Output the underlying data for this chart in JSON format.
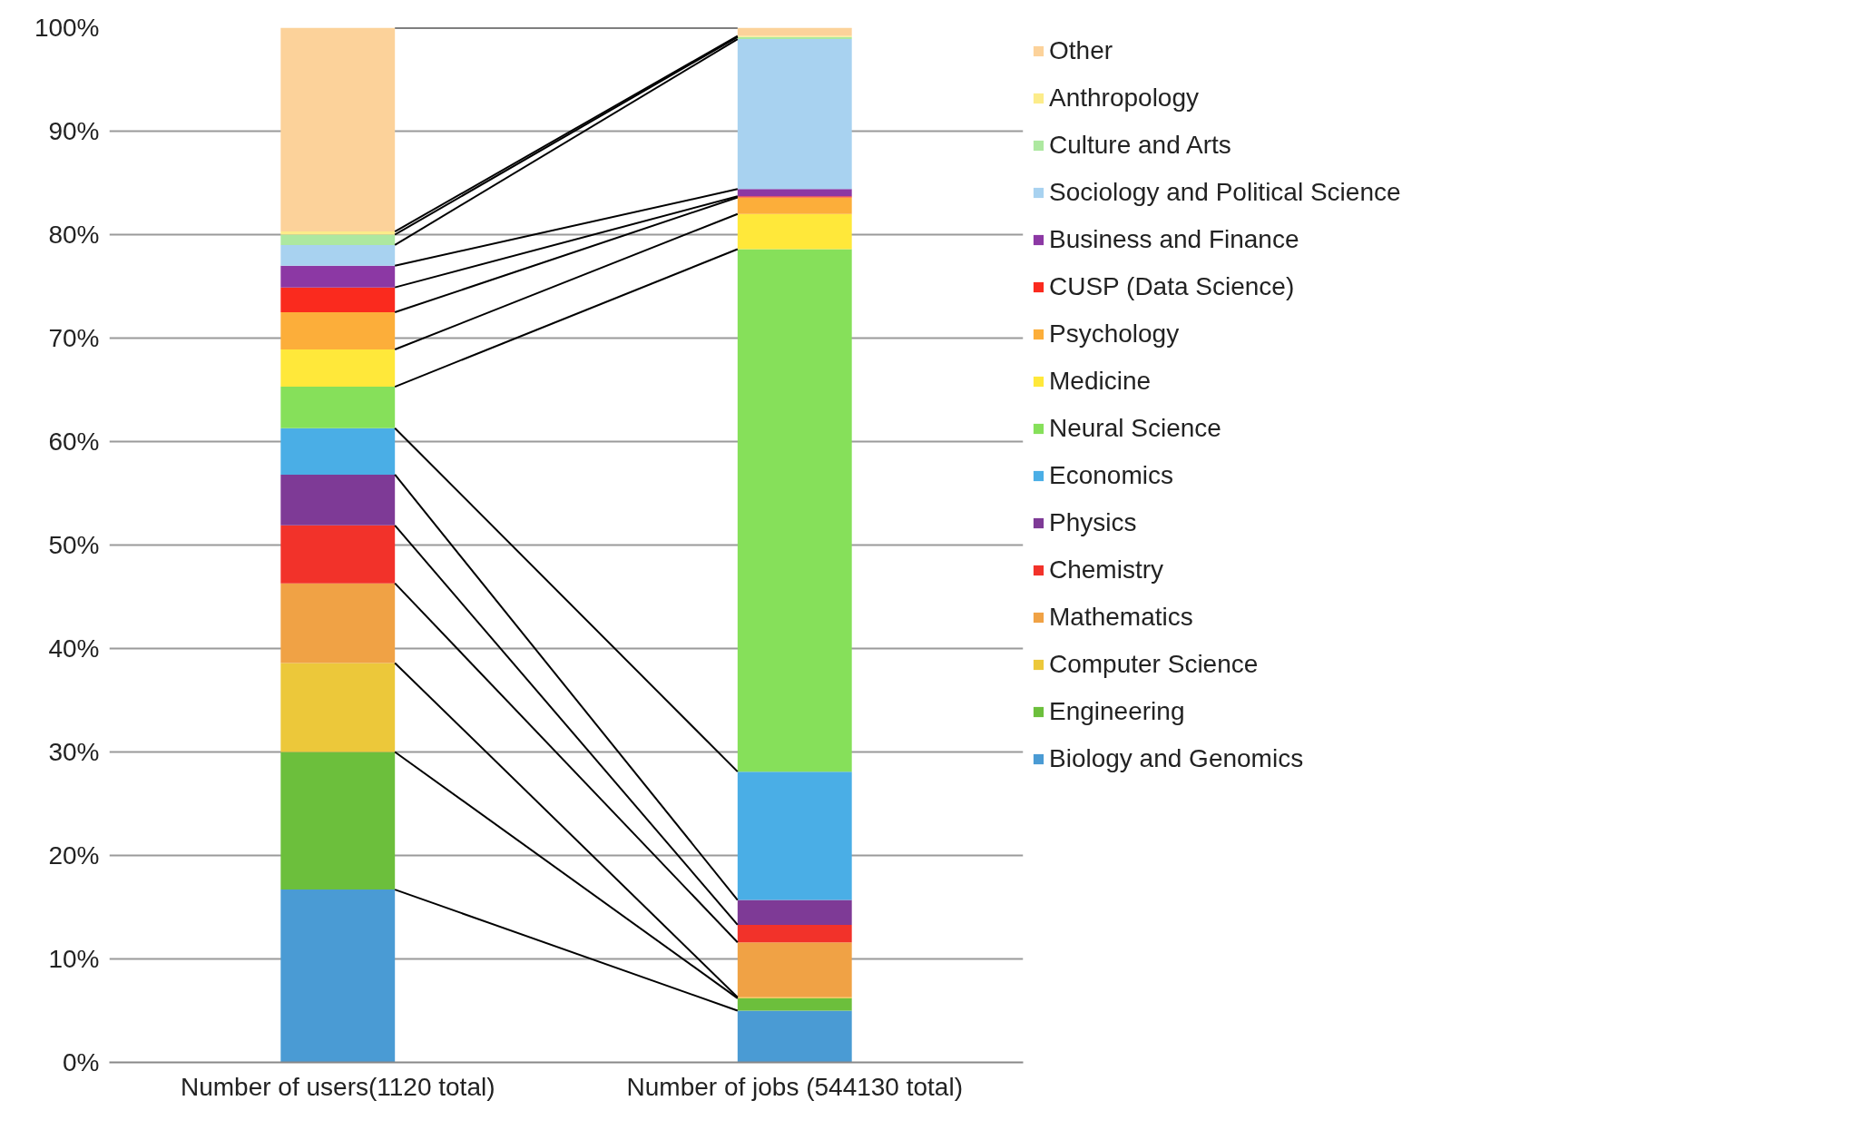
{
  "chart_data": {
    "type": "bar",
    "stacked": true,
    "categories": [
      "Number of users(1120 total)",
      "Number of jobs (544130 total)"
    ],
    "ylim": [
      0,
      100
    ],
    "yticks": [
      {
        "value": 0,
        "label": "0%"
      },
      {
        "value": 10,
        "label": "10%"
      },
      {
        "value": 20,
        "label": "20%"
      },
      {
        "value": 30,
        "label": "30%"
      },
      {
        "value": 40,
        "label": "40%"
      },
      {
        "value": 50,
        "label": "50%"
      },
      {
        "value": 60,
        "label": "60%"
      },
      {
        "value": 70,
        "label": "70%"
      },
      {
        "value": 80,
        "label": "80%"
      },
      {
        "value": 90,
        "label": "90%"
      },
      {
        "value": 100,
        "label": "100%"
      }
    ],
    "grid": "y",
    "legend": "right",
    "series": [
      {
        "name": "Biology and Genomics",
        "color": "#4a9bd4",
        "values": [
          16.7,
          5.0
        ]
      },
      {
        "name": "Engineering",
        "color": "#6cbf3c",
        "values": [
          13.3,
          1.2
        ]
      },
      {
        "name": "Computer Science",
        "color": "#ecc83a",
        "values": [
          8.6,
          0.1
        ]
      },
      {
        "name": "Mathematics",
        "color": "#f0a245",
        "values": [
          7.7,
          5.3
        ]
      },
      {
        "name": "Chemistry",
        "color": "#f2322a",
        "values": [
          5.6,
          1.7
        ]
      },
      {
        "name": "Physics",
        "color": "#7e3a96",
        "values": [
          4.9,
          2.4
        ]
      },
      {
        "name": "Economics",
        "color": "#4aaee6",
        "values": [
          4.5,
          12.4
        ]
      },
      {
        "name": "Neural Science",
        "color": "#86e05a",
        "values": [
          4.0,
          50.5
        ]
      },
      {
        "name": "Medicine",
        "color": "#ffe83a",
        "values": [
          3.6,
          3.4
        ]
      },
      {
        "name": "Psychology",
        "color": "#fcae3a",
        "values": [
          3.6,
          1.6
        ]
      },
      {
        "name": "CUSP (Data Science)",
        "color": "#fa2a1e",
        "values": [
          2.4,
          0.1
        ]
      },
      {
        "name": "Business and Finance",
        "color": "#8c38a4",
        "values": [
          2.1,
          0.7
        ]
      },
      {
        "name": "Sociology and Political Science",
        "color": "#a8d2f0",
        "values": [
          2.0,
          14.5
        ]
      },
      {
        "name": "Culture and Arts",
        "color": "#ade8a0",
        "values": [
          1.0,
          0.2
        ]
      },
      {
        "name": "Anthropology",
        "color": "#fcec8a",
        "values": [
          0.3,
          0.1
        ]
      },
      {
        "name": "Other",
        "color": "#fcd29a",
        "values": [
          19.7,
          0.8
        ]
      }
    ]
  }
}
